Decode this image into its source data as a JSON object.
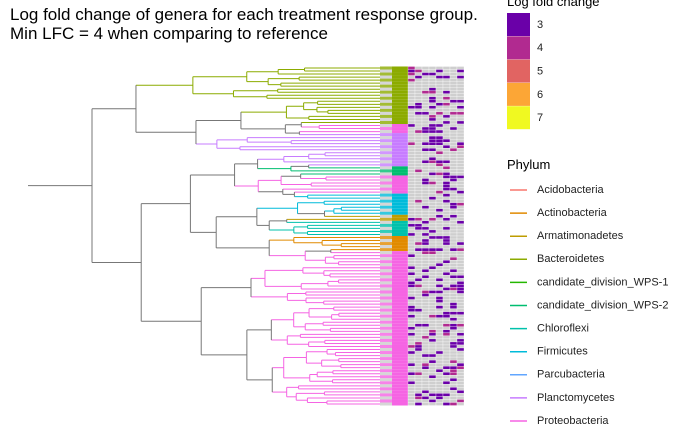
{
  "chart_data": {
    "type": "tree-heatmap",
    "title": [
      "Log fold change of genera for each treatment response group.",
      "Min LFC = 4 when comparing to reference"
    ],
    "lfc_legend": {
      "title": "Log fold change",
      "values": [
        3,
        4,
        5,
        6,
        7
      ],
      "colors": [
        "#6a00a8",
        "#b12a90",
        "#e16462",
        "#fca636",
        "#f0f921"
      ]
    },
    "phylum_legend": {
      "title": "Phylum",
      "names": [
        "Acidobacteria",
        "Actinobacteria",
        "Armatimonadetes",
        "Bacteroidetes",
        "candidate_division_WPS-1",
        "candidate_division_WPS-2",
        "Chloroflexi",
        "Firmicutes",
        "Parcubacteria",
        "Planctomycetes",
        "Proteobacteria"
      ],
      "colors": [
        "#f8766d",
        "#e18a00",
        "#be9c00",
        "#8cab00",
        "#24b700",
        "#00be70",
        "#00c1ab",
        "#00bbda",
        "#61a6ff",
        "#c77cff",
        "#f564e3"
      ]
    }
  }
}
